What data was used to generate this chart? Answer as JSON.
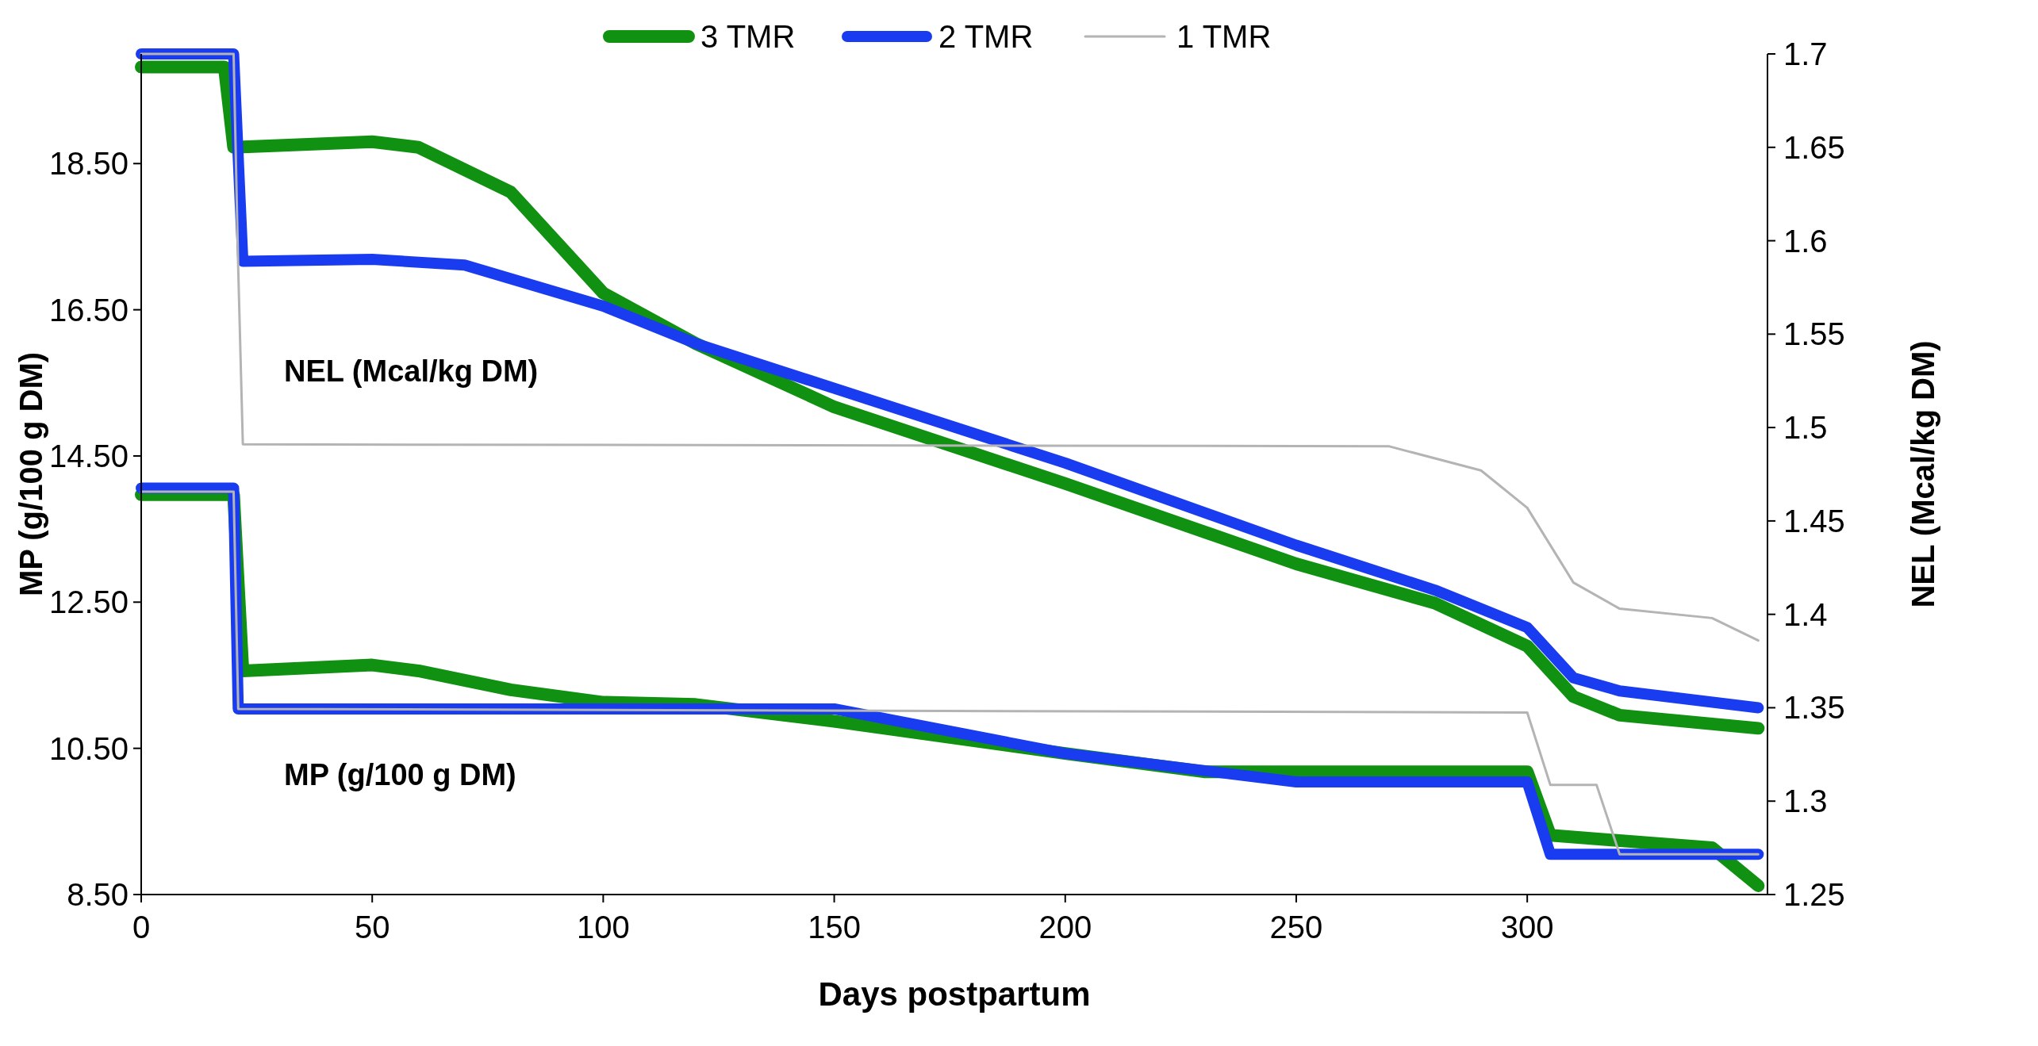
{
  "chart_data": {
    "type": "line",
    "xlabel": "Days postpartum",
    "ylabel": "MP (g/100 g DM)",
    "y2label": "NEL (Mcal/kg DM)",
    "xlim": [
      0,
      352
    ],
    "xticks": [
      0,
      50,
      100,
      150,
      200,
      250,
      300
    ],
    "ylim": [
      8.5,
      20
    ],
    "yticks": [
      {
        "value": 8.5,
        "label": "8.50"
      },
      {
        "value": 10.5,
        "label": "10.50"
      },
      {
        "value": 12.5,
        "label": "12.50"
      },
      {
        "value": 14.5,
        "label": "14.50"
      },
      {
        "value": 16.5,
        "label": "16.50"
      },
      {
        "value": 18.5,
        "label": "18.50"
      }
    ],
    "y2lim": [
      1.25,
      1.7
    ],
    "y2ticks": [
      1.25,
      1.3,
      1.35,
      1.4,
      1.45,
      1.5,
      1.55,
      1.6,
      1.65,
      1.7
    ],
    "legend": "top",
    "grid": false,
    "line_style": "solid",
    "annotations": [
      "NEL (Mcal/kg DM)",
      "MP (g/100 g DM)"
    ],
    "series": [
      {
        "name": "3 TMR",
        "color": "#119111",
        "x": [
          0,
          18,
          20,
          22,
          50,
          60,
          80,
          100,
          120,
          150,
          200,
          230,
          300,
          305,
          340,
          350
        ],
        "values": [
          13.97,
          13.97,
          13.97,
          11.56,
          11.64,
          11.56,
          11.3,
          11.13,
          11.1,
          10.87,
          10.43,
          10.18,
          10.18,
          9.31,
          9.14,
          8.62
        ]
      },
      {
        "name": "2 TMR",
        "color": "#1a3cf0",
        "x": [
          0,
          20,
          21,
          150,
          200,
          250,
          300,
          305,
          350
        ],
        "values": [
          14.06,
          14.06,
          11.04,
          11.04,
          10.43,
          10.04,
          10.04,
          9.05,
          9.05
        ]
      },
      {
        "name": "1 TMR",
        "color": "#b4b4b4",
        "x": [
          0,
          20,
          21,
          300,
          305,
          315,
          320,
          350
        ],
        "values": [
          14.01,
          14.01,
          11.04,
          10.99,
          10.0,
          10.0,
          9.05,
          9.05
        ]
      },
      {
        "color": "#119111",
        "axis": "y2",
        "x": [
          0,
          18,
          20,
          50,
          60,
          80,
          100,
          120,
          150,
          200,
          250,
          280,
          300,
          310,
          320,
          350
        ],
        "values": [
          1.693,
          1.693,
          1.65,
          1.653,
          1.65,
          1.626,
          1.572,
          1.545,
          1.511,
          1.47,
          1.427,
          1.406,
          1.383,
          1.356,
          1.346,
          1.339
        ]
      },
      {
        "color": "#1a3cf0",
        "axis": "y2",
        "x": [
          0,
          20,
          22,
          50,
          70,
          100,
          120,
          150,
          200,
          250,
          280,
          300,
          310,
          320,
          350
        ],
        "values": [
          1.7,
          1.7,
          1.589,
          1.59,
          1.587,
          1.565,
          1.545,
          1.521,
          1.481,
          1.437,
          1.413,
          1.393,
          1.366,
          1.359,
          1.35
        ]
      },
      {
        "color": "#b4b4b4",
        "axis": "y2",
        "x": [
          0,
          20,
          21,
          22,
          270,
          290,
          300,
          310,
          320,
          340,
          350
        ],
        "values": [
          1.7,
          1.7,
          1.585,
          1.491,
          1.49,
          1.477,
          1.457,
          1.417,
          1.403,
          1.398,
          1.386
        ]
      }
    ]
  }
}
